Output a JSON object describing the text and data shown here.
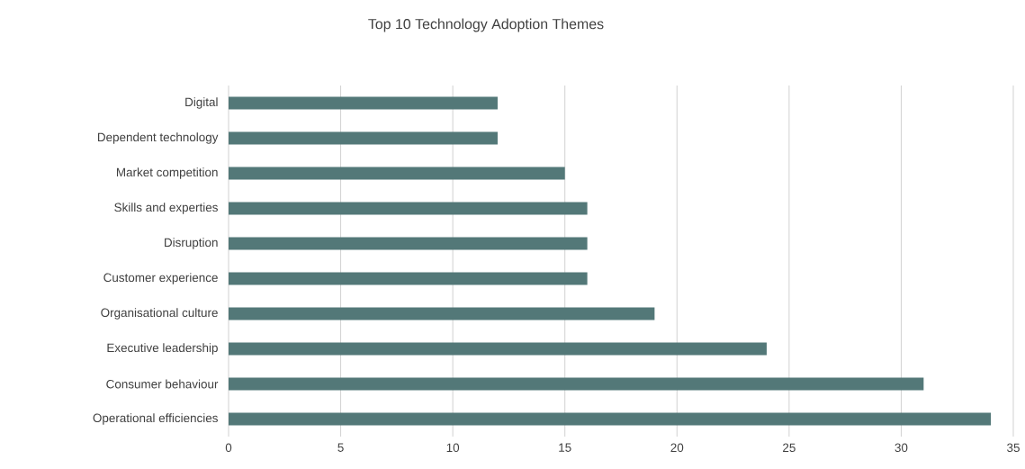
{
  "chart_data": {
    "type": "bar",
    "orientation": "horizontal",
    "title": "Top 10 Technology Adoption Themes",
    "categories": [
      "Digital",
      "Dependent technology",
      "Market competition",
      "Skills and experties",
      "Disruption",
      "Customer experience",
      "Organisational culture",
      "Executive leadership",
      "Consumer behaviour",
      "Operational efficiencies"
    ],
    "values": [
      12,
      12,
      15,
      16,
      16,
      16,
      19,
      24,
      31,
      34
    ],
    "color": "#537878",
    "xlim": [
      0,
      35
    ],
    "xticks": [
      0,
      5,
      10,
      15,
      20,
      25,
      30,
      35
    ],
    "grid": "x"
  }
}
